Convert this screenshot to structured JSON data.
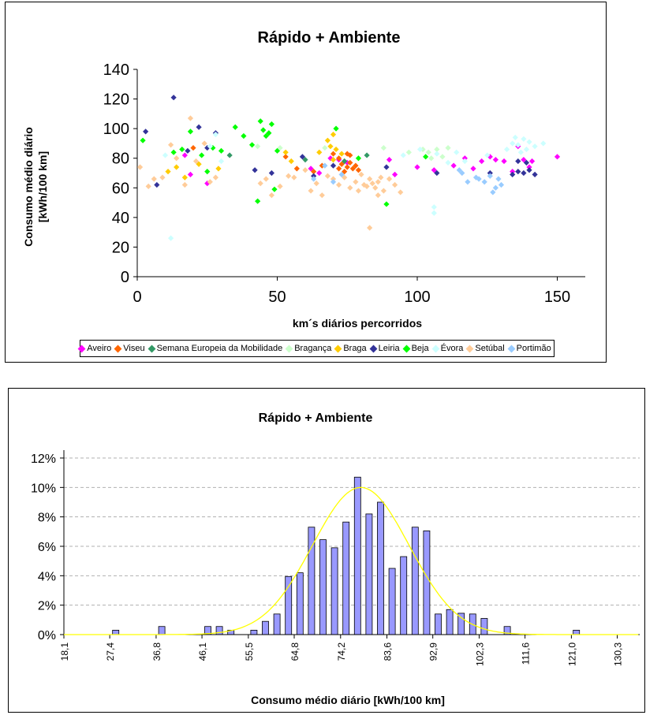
{
  "charts": [
    {
      "title": "Rápido + Ambiente",
      "xlabel": "km´s diários percorridos",
      "ylabel_line1": "Consumo médio diário",
      "ylabel_line2": "[kWh/100 km]",
      "x_ticks": [
        "0",
        "50",
        "100",
        "150"
      ],
      "y_ticks": [
        "0",
        "20",
        "40",
        "60",
        "80",
        "100",
        "120",
        "140"
      ]
    },
    {
      "title": "Rápido + Ambiente",
      "xlabel": "Consumo médio diário [kWh/100 km]",
      "x_ticks": [
        "18,1",
        "27,4",
        "36,8",
        "46,1",
        "55,5",
        "64,8",
        "74,2",
        "83,6",
        "92,9",
        "102,3",
        "111,6",
        "121,0",
        "130,3"
      ],
      "y_ticks": [
        "0%",
        "2%",
        "4%",
        "6%",
        "8%",
        "10%",
        "12%"
      ]
    }
  ],
  "chart_data": [
    {
      "type": "scatter",
      "title": "Rápido + Ambiente",
      "xlabel": "km´s diários percorridos",
      "ylabel": "Consumo médio diário [kWh/100 km]",
      "xlim": [
        0,
        160
      ],
      "ylim": [
        0,
        140
      ],
      "grid": false,
      "legend_position": "bottom",
      "series": [
        {
          "name": "Aveiro",
          "color": "#ff00ff",
          "points": [
            [
              17,
              82
            ],
            [
              19,
              69
            ],
            [
              25,
              63
            ],
            [
              62,
              73
            ],
            [
              65,
              70
            ],
            [
              69,
              80
            ],
            [
              72,
              79
            ],
            [
              75,
              77
            ],
            [
              90,
              79
            ],
            [
              92,
              69
            ],
            [
              100,
              74
            ],
            [
              106,
              72
            ],
            [
              113,
              75
            ],
            [
              117,
              80
            ],
            [
              120,
              73
            ],
            [
              123,
              78
            ],
            [
              126,
              81
            ],
            [
              128,
              79
            ],
            [
              131,
              78
            ],
            [
              134,
              71
            ],
            [
              136,
              88
            ],
            [
              138,
              79
            ],
            [
              140,
              74
            ],
            [
              141,
              78
            ],
            [
              150,
              81
            ]
          ]
        },
        {
          "name": "Viseu",
          "color": "#ff6600",
          "points": [
            [
              20,
              87
            ],
            [
              53,
              81
            ],
            [
              57,
              73
            ],
            [
              63,
              71
            ],
            [
              66,
              75
            ],
            [
              70,
              83
            ],
            [
              72,
              80
            ],
            [
              73,
              76
            ],
            [
              74,
              78
            ],
            [
              75,
              74
            ],
            [
              76,
              77
            ],
            [
              77,
              73
            ],
            [
              78,
              75
            ],
            [
              76,
              82
            ],
            [
              74,
              71
            ],
            [
              79,
              72
            ],
            [
              72,
              73
            ],
            [
              75,
              83
            ]
          ]
        },
        {
          "name": "Semana Europeia da Mobilidade",
          "color": "#339966",
          "points": [
            [
              33,
              82
            ],
            [
              60,
              79
            ],
            [
              74,
              78
            ],
            [
              82,
              82
            ]
          ]
        },
        {
          "name": "Bragança",
          "color": "#ccffcc",
          "points": [
            [
              43,
              88
            ],
            [
              51,
              87
            ],
            [
              67,
              87
            ],
            [
              88,
              87
            ],
            [
              97,
              84
            ],
            [
              102,
              86
            ],
            [
              104,
              84
            ],
            [
              105,
              80
            ],
            [
              107,
              86
            ],
            [
              109,
              81
            ],
            [
              111,
              87
            ]
          ]
        },
        {
          "name": "Braga",
          "color": "#ffcc00",
          "points": [
            [
              11,
              71
            ],
            [
              14,
              74
            ],
            [
              17,
              67
            ],
            [
              22,
              76
            ],
            [
              29,
              73
            ],
            [
              53,
              84
            ],
            [
              55,
              78
            ],
            [
              65,
              84
            ],
            [
              68,
              92
            ],
            [
              69,
              88
            ],
            [
              70,
              96
            ],
            [
              71,
              86
            ],
            [
              73,
              83
            ],
            [
              70,
              79
            ]
          ]
        },
        {
          "name": "Leiria",
          "color": "#333399",
          "points": [
            [
              3,
              98
            ],
            [
              7,
              62
            ],
            [
              13,
              121
            ],
            [
              18,
              85
            ],
            [
              22,
              101
            ],
            [
              25,
              87
            ],
            [
              28,
              97
            ],
            [
              42,
              72
            ],
            [
              48,
              70
            ],
            [
              59,
              81
            ],
            [
              63,
              68
            ],
            [
              70,
              75
            ],
            [
              89,
              74
            ],
            [
              107,
              70
            ],
            [
              126,
              70
            ],
            [
              134,
              69
            ],
            [
              136,
              71
            ],
            [
              138,
              70
            ],
            [
              140,
              72
            ],
            [
              142,
              69
            ],
            [
              139,
              77
            ],
            [
              136,
              78
            ]
          ]
        },
        {
          "name": "Beja",
          "color": "#00ff00",
          "points": [
            [
              2,
              92
            ],
            [
              13,
              84
            ],
            [
              16,
              86
            ],
            [
              19,
              98
            ],
            [
              23,
              82
            ],
            [
              25,
              71
            ],
            [
              27,
              87
            ],
            [
              30,
              85
            ],
            [
              35,
              101
            ],
            [
              38,
              95
            ],
            [
              41,
              89
            ],
            [
              43,
              51
            ],
            [
              44,
              105
            ],
            [
              45,
              99
            ],
            [
              46,
              95
            ],
            [
              47,
              97
            ],
            [
              48,
              103
            ],
            [
              49,
              59
            ],
            [
              50,
              85
            ],
            [
              71,
              100
            ],
            [
              79,
              80
            ],
            [
              89,
              49
            ],
            [
              103,
              81
            ]
          ]
        },
        {
          "name": "Évora",
          "color": "#ccffff",
          "points": [
            [
              10,
              82
            ],
            [
              12,
              26
            ],
            [
              26,
              88
            ],
            [
              28,
              96
            ],
            [
              30,
              78
            ],
            [
              95,
              82
            ],
            [
              101,
              86
            ],
            [
              106,
              43
            ],
            [
              106,
              47
            ],
            [
              107,
              83
            ],
            [
              111,
              77
            ],
            [
              114,
              84
            ],
            [
              117,
              78
            ],
            [
              125,
              82
            ],
            [
              132,
              86
            ],
            [
              134,
              90
            ],
            [
              135,
              94
            ],
            [
              136,
              89
            ],
            [
              137,
              84
            ],
            [
              138,
              93
            ],
            [
              139,
              86
            ],
            [
              140,
              91
            ],
            [
              142,
              88
            ],
            [
              145,
              90
            ]
          ]
        },
        {
          "name": "Setúbal",
          "color": "#ffcc99",
          "points": [
            [
              1,
              74
            ],
            [
              4,
              61
            ],
            [
              6,
              66
            ],
            [
              9,
              67
            ],
            [
              12,
              89
            ],
            [
              14,
              80
            ],
            [
              17,
              62
            ],
            [
              19,
              107
            ],
            [
              21,
              78
            ],
            [
              24,
              90
            ],
            [
              26,
              64
            ],
            [
              28,
              67
            ],
            [
              44,
              63
            ],
            [
              46,
              66
            ],
            [
              48,
              55
            ],
            [
              51,
              61
            ],
            [
              54,
              68
            ],
            [
              56,
              67
            ],
            [
              60,
              72
            ],
            [
              62,
              58
            ],
            [
              64,
              63
            ],
            [
              66,
              55
            ],
            [
              68,
              68
            ],
            [
              70,
              66
            ],
            [
              72,
              62
            ],
            [
              74,
              67
            ],
            [
              76,
              60
            ],
            [
              78,
              64
            ],
            [
              79,
              58
            ],
            [
              80,
              69
            ],
            [
              81,
              62
            ],
            [
              82,
              61
            ],
            [
              83,
              66
            ],
            [
              84,
              63
            ],
            [
              85,
              60
            ],
            [
              86,
              64
            ],
            [
              87,
              67
            ],
            [
              83,
              33
            ],
            [
              88,
              58
            ],
            [
              90,
              66
            ],
            [
              92,
              62
            ],
            [
              94,
              57
            ],
            [
              86,
              55
            ]
          ]
        },
        {
          "name": "Portimão",
          "color": "#99ccff",
          "points": [
            [
              63,
              66
            ],
            [
              67,
              75
            ],
            [
              70,
              64
            ],
            [
              73,
              69
            ],
            [
              115,
              72
            ],
            [
              116,
              70
            ],
            [
              118,
              64
            ],
            [
              121,
              67
            ],
            [
              122,
              66
            ],
            [
              124,
              64
            ],
            [
              126,
              68
            ],
            [
              128,
              60
            ],
            [
              129,
              66
            ],
            [
              130,
              62
            ],
            [
              127,
              57
            ]
          ]
        }
      ]
    },
    {
      "type": "bar",
      "title": "Rápido + Ambiente",
      "xlabel": "Consumo médio diário [kWh/100 km]",
      "ylabel": "",
      "ylim": [
        0,
        12
      ],
      "bar_color": "#9999ff",
      "curve_color": "#ffff00",
      "bin_start": 18.1,
      "bin_width": 2.335,
      "values": [
        0,
        0,
        0,
        0,
        0.3,
        0,
        0,
        0,
        0.55,
        0,
        0,
        0,
        0.55,
        0.55,
        0.3,
        0,
        0.3,
        0.9,
        1.4,
        3.95,
        4.2,
        7.3,
        6.45,
        5.9,
        7.65,
        10.7,
        8.2,
        9.0,
        4.5,
        5.3,
        7.3,
        7.05,
        1.4,
        1.7,
        1.45,
        1.4,
        1.1,
        0,
        0.55,
        0,
        0,
        0,
        0,
        0,
        0.3,
        0,
        0,
        0,
        0,
        0
      ],
      "curve": {
        "label": "normal fit",
        "mean": 78.3,
        "sd": 9.8,
        "peak": 10.0
      }
    }
  ]
}
